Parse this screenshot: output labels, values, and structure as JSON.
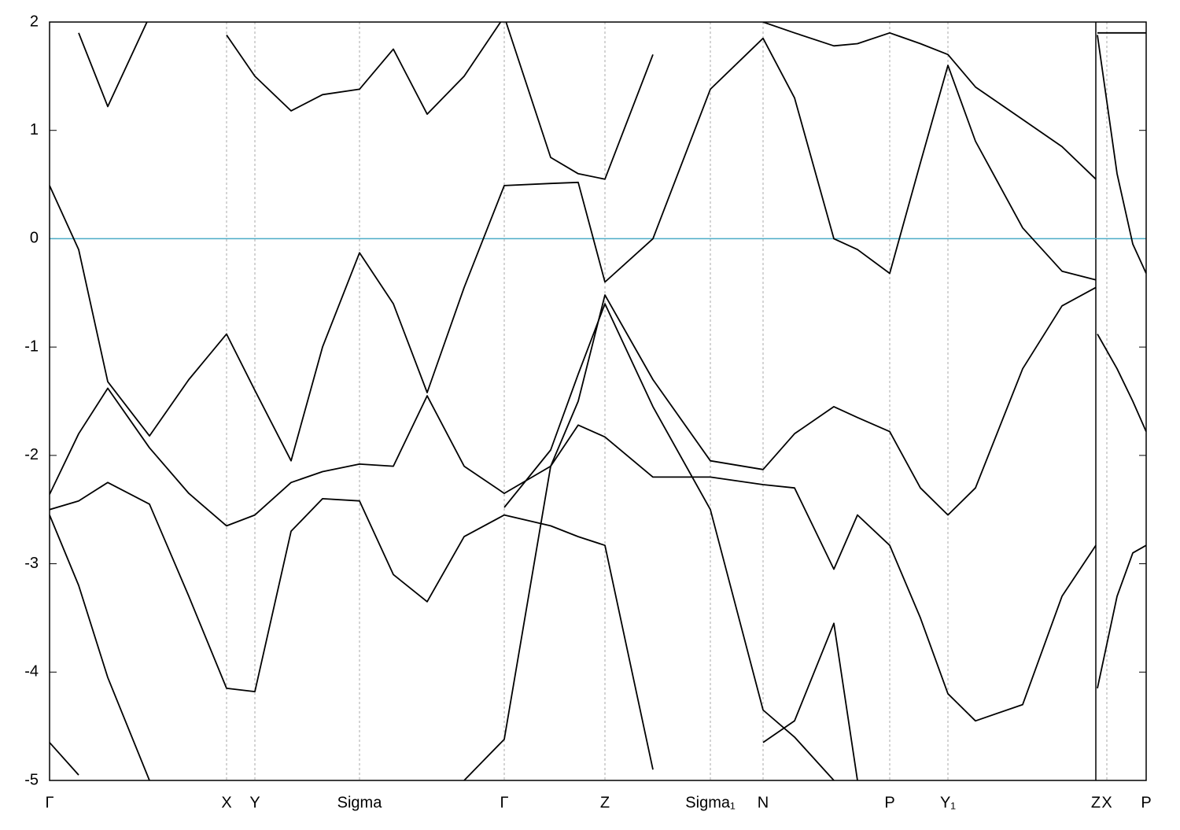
{
  "chart_data": {
    "type": "line",
    "x": [
      0,
      0.37,
      0.74,
      1.27,
      1.77,
      2.25,
      2.61,
      3.07,
      3.47,
      3.94,
      4.37,
      4.8,
      5.27,
      5.78,
      6.37,
      6.72,
      7.06,
      7.67,
      8.4,
      9.07,
      9.47,
      9.97,
      10.27,
      10.68,
      11.07,
      11.42,
      11.77,
      12.37,
      12.87,
      13.3,
      13.31,
      13.32,
      13.57,
      13.77,
      13.94
    ],
    "xlim": [
      0,
      13.94
    ],
    "xticks": [
      {
        "value": 0,
        "label": "Γ"
      },
      {
        "value": 2.25,
        "label": "X"
      },
      {
        "value": 2.61,
        "label": "Y"
      },
      {
        "value": 3.94,
        "label": "Sigma"
      },
      {
        "value": 5.78,
        "label": "Γ"
      },
      {
        "value": 7.06,
        "label": "Z"
      },
      {
        "value": 8.4,
        "label": "Sigma₁"
      },
      {
        "value": 9.07,
        "label": "N"
      },
      {
        "value": 10.68,
        "label": "P"
      },
      {
        "value": 11.42,
        "label": "Y₁"
      },
      {
        "value": 13.3,
        "label": "Z"
      },
      {
        "value": 13.44,
        "label": "X"
      },
      {
        "value": 13.94,
        "label": "P"
      }
    ],
    "ylim": [
      -5,
      2
    ],
    "yticks": [
      -5,
      -4,
      -3,
      -2,
      -1,
      0,
      1,
      2
    ],
    "grid": true,
    "solid_tick_index": 10,
    "fermi_level": 0,
    "fermi_color": "#4bacc6",
    "series": [
      {
        "color": "#000000",
        "values": [
          0.49,
          -0.1,
          -1.32,
          -1.82,
          -1.3,
          -0.88,
          -1.4,
          -2.05,
          -1.0,
          -0.13,
          -0.6,
          -1.42,
          -0.45,
          0.49,
          0.51,
          0.52,
          -0.4,
          0.0,
          1.38,
          1.85,
          1.3,
          0.0,
          -0.1,
          -0.32,
          0.7,
          1.6,
          0.9,
          0.1,
          -0.3,
          -0.38,
          null,
          1.88,
          0.6,
          -0.05,
          -0.32
        ]
      },
      {
        "color": "#000000",
        "values": [
          -2.36,
          -1.8,
          -1.38,
          -1.93,
          -2.35,
          -2.65,
          -2.55,
          -2.25,
          -2.15,
          -2.08,
          -2.1,
          -1.45,
          -2.1,
          -2.35,
          -2.1,
          -1.5,
          -0.52,
          -1.3,
          -2.05,
          -2.13,
          -1.8,
          -1.55,
          -1.65,
          -1.78,
          -2.3,
          -2.55,
          -2.3,
          -1.2,
          -0.62,
          -0.45,
          null,
          -0.88,
          -1.2,
          -1.5,
          -1.78
        ]
      },
      {
        "color": "#000000",
        "values": [
          -2.5,
          -2.42,
          -2.25,
          -2.45,
          -3.3,
          -4.15,
          -4.18,
          -2.7,
          -2.4,
          -2.42,
          -3.1,
          -3.35,
          -2.75,
          -2.55,
          -2.65,
          -2.75,
          -2.83,
          -4.9,
          null,
          null,
          null,
          null,
          null,
          null,
          null,
          null,
          null,
          null,
          null,
          null,
          null,
          null,
          null,
          null,
          null
        ]
      },
      {
        "color": "#000000",
        "values": [
          -2.55,
          -3.2,
          -4.05,
          -5.0,
          null,
          null,
          null,
          null,
          null,
          null,
          null,
          null,
          null,
          null,
          null,
          null,
          null,
          null,
          null,
          null,
          null,
          null,
          null,
          null,
          null,
          null,
          null,
          null,
          null,
          null,
          null,
          null,
          null,
          null,
          null
        ]
      },
      {
        "color": "#000000",
        "values": [
          -4.65,
          -4.95,
          null,
          null,
          null,
          null,
          null,
          null,
          null,
          null,
          null,
          null,
          null,
          null,
          null,
          null,
          null,
          null,
          null,
          null,
          null,
          null,
          null,
          null,
          null,
          null,
          null,
          null,
          null,
          null,
          null,
          null,
          null,
          null,
          null
        ]
      },
      {
        "color": "#000000",
        "values": [
          null,
          null,
          null,
          null,
          null,
          null,
          null,
          null,
          null,
          null,
          null,
          null,
          -5.0,
          -4.62,
          -2.1,
          -1.72,
          -1.83,
          -2.2,
          -2.2,
          -2.27,
          -2.3,
          -3.05,
          -2.55,
          -2.83,
          -3.5,
          -4.2,
          -4.45,
          -4.3,
          -3.3,
          -2.83,
          null,
          -4.15,
          -3.3,
          -2.9,
          -2.83
        ]
      },
      {
        "color": "#000000",
        "values": [
          null,
          null,
          null,
          null,
          null,
          null,
          null,
          null,
          null,
          null,
          null,
          null,
          null,
          -2.48,
          -1.95,
          -1.25,
          -0.6,
          -1.55,
          -2.5,
          -4.35,
          -4.6,
          -5.0,
          null,
          null,
          null,
          null,
          null,
          null,
          null,
          null,
          null,
          null,
          null,
          null,
          null
        ]
      },
      {
        "color": "#000000",
        "values": [
          null,
          1.9,
          1.22,
          2.05,
          null,
          null,
          null,
          null,
          null,
          null,
          null,
          null,
          null,
          null,
          null,
          null,
          null,
          null,
          null,
          null,
          null,
          null,
          null,
          null,
          null,
          null,
          null,
          null,
          null,
          null,
          null,
          null,
          null,
          null,
          null
        ]
      },
      {
        "color": "#000000",
        "values": [
          null,
          null,
          null,
          null,
          null,
          1.88,
          1.5,
          1.18,
          1.33,
          1.38,
          1.75,
          1.15,
          1.5,
          2.05,
          null,
          null,
          null,
          null,
          null,
          null,
          null,
          null,
          null,
          null,
          null,
          null,
          null,
          null,
          null,
          null,
          null,
          null,
          null,
          null,
          null
        ]
      },
      {
        "color": "#000000",
        "values": [
          null,
          null,
          null,
          null,
          null,
          null,
          null,
          null,
          null,
          null,
          null,
          null,
          null,
          2.05,
          0.75,
          0.6,
          0.55,
          1.7,
          null,
          null,
          null,
          null,
          null,
          null,
          null,
          null,
          null,
          null,
          null,
          null,
          null,
          null,
          null,
          null,
          null
        ]
      },
      {
        "color": "#000000",
        "values": [
          null,
          null,
          null,
          null,
          null,
          null,
          null,
          null,
          null,
          null,
          null,
          null,
          null,
          null,
          null,
          null,
          null,
          null,
          null,
          2.0,
          1.9,
          1.78,
          1.8,
          1.9,
          1.8,
          1.7,
          1.4,
          1.1,
          0.85,
          0.55,
          null,
          1.9,
          1.9,
          1.9,
          1.9
        ]
      },
      {
        "color": "#000000",
        "values": [
          null,
          null,
          null,
          null,
          null,
          null,
          null,
          null,
          null,
          null,
          null,
          null,
          null,
          null,
          null,
          null,
          null,
          null,
          null,
          -4.65,
          -4.45,
          -3.55,
          -5.0,
          null,
          null,
          null,
          null,
          null,
          null,
          null,
          null,
          null,
          null,
          null,
          null
        ]
      }
    ]
  }
}
